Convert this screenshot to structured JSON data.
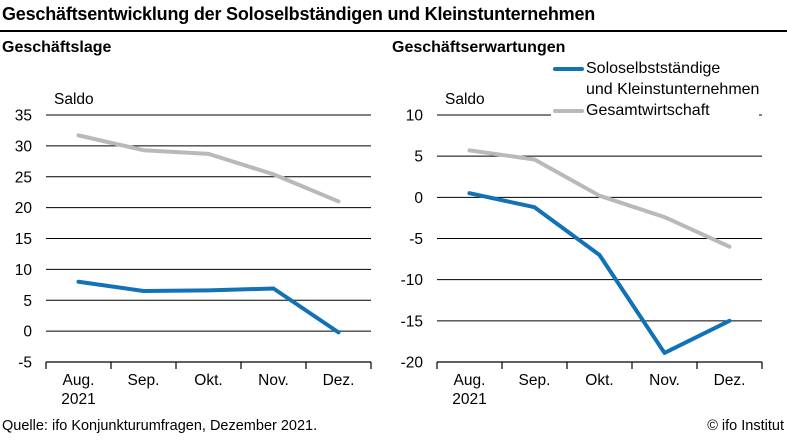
{
  "title": "Geschäftsentwicklung der Soloselbständigen und Kleinstunternehmen",
  "footer": {
    "source": "Quelle: ifo Konjunkturumfragen, Dezember 2021.",
    "copyright": "© ifo Institut"
  },
  "colors": {
    "solo_blue": "#1272b6",
    "gesamt_gray": "#b9b9b9",
    "grid": "#000000",
    "text": "#000000"
  },
  "legend": {
    "items": [
      {
        "series": "Soloselbstständige und Kleinstunternehmen",
        "color": "#1272b6",
        "lines": [
          "Soloselbstständige",
          "und Kleinstunternehmen"
        ]
      },
      {
        "series": "Gesamtwirtschaft",
        "color": "#b9b9b9",
        "lines": [
          "Gesamtwirtschaft"
        ]
      }
    ]
  },
  "chart_data": [
    {
      "type": "line",
      "title": "Geschäftslage",
      "ylabel": "Saldo",
      "categories": [
        "Aug.",
        "Sep.",
        "Okt.",
        "Nov.",
        "Dez."
      ],
      "x_sub_label": "2021",
      "series": [
        {
          "name": "Soloselbstständige und Kleinstunternehmen",
          "color": "#1272b6",
          "values": [
            8.0,
            6.5,
            6.6,
            6.9,
            -0.2
          ]
        },
        {
          "name": "Gesamtwirtschaft",
          "color": "#b9b9b9",
          "values": [
            31.7,
            29.3,
            28.7,
            25.4,
            21.0
          ]
        }
      ],
      "ylim": [
        -5,
        35
      ],
      "ytick_step": 5,
      "grid": true,
      "legend_position": "none"
    },
    {
      "type": "line",
      "title": "Geschäftserwartungen",
      "ylabel": "Saldo",
      "categories": [
        "Aug.",
        "Sep.",
        "Okt.",
        "Nov.",
        "Dez."
      ],
      "x_sub_label": "2021",
      "series": [
        {
          "name": "Soloselbstständige und Kleinstunternehmen",
          "color": "#1272b6",
          "values": [
            0.5,
            -1.2,
            -7.0,
            -18.9,
            -15.0
          ]
        },
        {
          "name": "Gesamtwirtschaft",
          "color": "#b9b9b9",
          "values": [
            5.7,
            4.6,
            0.2,
            -2.4,
            -6.0
          ]
        }
      ],
      "ylim": [
        -20,
        10
      ],
      "ytick_step": 5,
      "grid": true,
      "legend_position": "top-right"
    }
  ]
}
